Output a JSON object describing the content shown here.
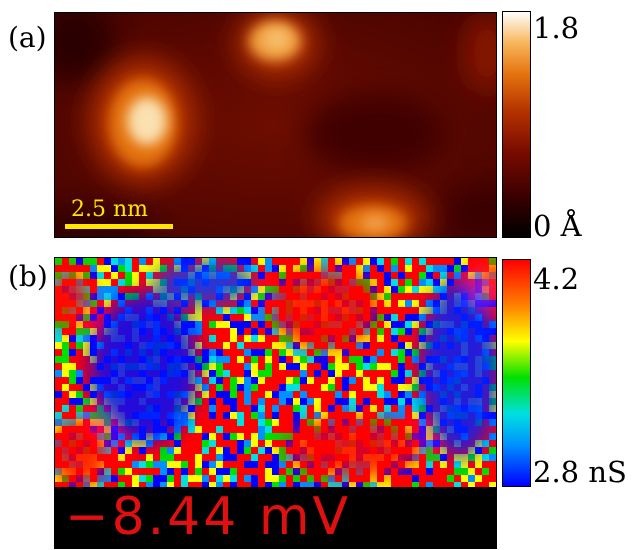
{
  "figure": {
    "panel_a": {
      "label": "(a)",
      "scale_bar_label": "2.5 nm",
      "colorbar": {
        "max_label": "1.8",
        "min_label": "0 Å",
        "colors": [
          "#000000",
          "#3a0000",
          "#7a0b00",
          "#b53200",
          "#e3720d",
          "#f8b45a",
          "#ffffff"
        ]
      }
    },
    "panel_b": {
      "label": "(b)",
      "bias_label": "−8.44 mV",
      "colorbar": {
        "max_label": "4.2",
        "min_label": "2.8 nS",
        "colors": [
          "#0000ff",
          "#0090ff",
          "#00e0e0",
          "#00e000",
          "#ffff00",
          "#ff8000",
          "#ff0000"
        ]
      }
    }
  }
}
